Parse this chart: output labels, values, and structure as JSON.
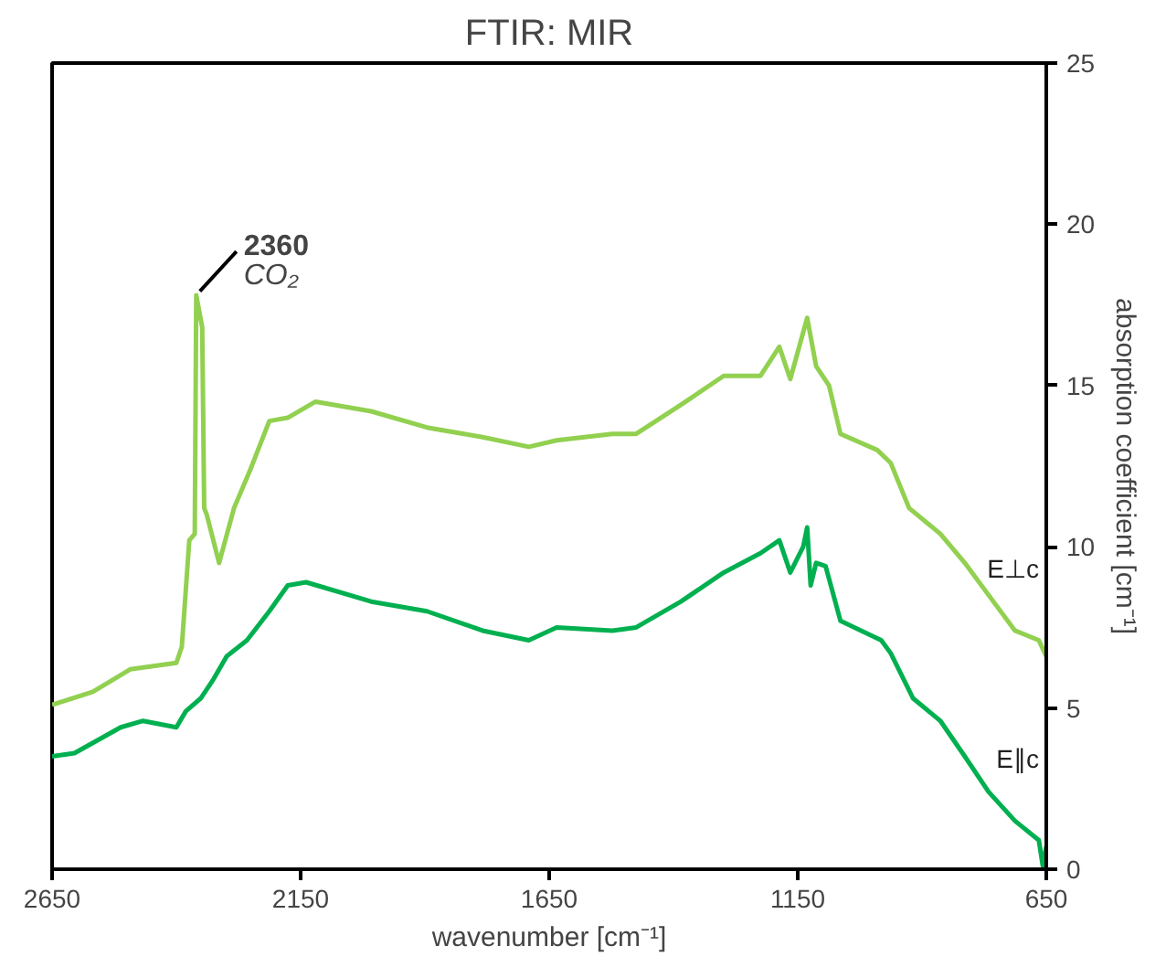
{
  "chart_data": {
    "type": "line",
    "title": "FTIR: MIR",
    "xlabel": "wavenumber [cm⁻¹]",
    "ylabel": "absorption coefficient [cm⁻¹]",
    "xlim": [
      2650,
      650
    ],
    "xticks": [
      2650,
      2150,
      1650,
      1150,
      650
    ],
    "ylim": [
      0,
      25
    ],
    "yticks": [
      0,
      5,
      10,
      15,
      20,
      25
    ],
    "grid": false,
    "annotations": [
      {
        "text": "2360",
        "x": 2360,
        "y": 17.8
      },
      {
        "text": "CO₂",
        "x": 2360,
        "y": 17.8
      }
    ],
    "series": [
      {
        "name": "E⊥c",
        "color": "#92d050",
        "x": [
          2650,
          2568,
          2493,
          2400,
          2389,
          2374,
          2363,
          2360,
          2348,
          2344,
          2339,
          2314,
          2284,
          2251,
          2213,
          2176,
          2120,
          2008,
          1896,
          1784,
          1691,
          1635,
          1523,
          1475,
          1385,
          1299,
          1225,
          1187,
          1165,
          1131,
          1113,
          1087,
          1064,
          990,
          963,
          926,
          863,
          814,
          766,
          713,
          665,
          650
        ],
        "values": [
          5.1,
          5.5,
          6.2,
          6.4,
          6.9,
          10.2,
          10.4,
          17.8,
          16.8,
          11.2,
          11.0,
          9.5,
          11.2,
          12.4,
          13.9,
          14.0,
          14.5,
          14.2,
          13.7,
          13.4,
          13.1,
          13.3,
          13.5,
          13.5,
          14.4,
          15.3,
          15.3,
          16.2,
          15.2,
          17.1,
          15.6,
          15.0,
          13.5,
          13.0,
          12.6,
          11.2,
          10.4,
          9.5,
          8.5,
          7.4,
          7.1,
          6.6
        ]
      },
      {
        "name": "E∥c",
        "color": "#00b050",
        "x": [
          2650,
          2605,
          2512,
          2467,
          2400,
          2381,
          2351,
          2325,
          2299,
          2258,
          2213,
          2176,
          2139,
          2008,
          1896,
          1784,
          1691,
          1635,
          1523,
          1475,
          1385,
          1299,
          1225,
          1187,
          1165,
          1139,
          1131,
          1124,
          1113,
          1094,
          1064,
          982,
          963,
          918,
          863,
          814,
          766,
          713,
          665,
          657,
          650
        ],
        "values": [
          3.5,
          3.6,
          4.4,
          4.6,
          4.4,
          4.9,
          5.3,
          5.9,
          6.6,
          7.1,
          8.0,
          8.8,
          8.9,
          8.3,
          8.0,
          7.4,
          7.1,
          7.5,
          7.4,
          7.5,
          8.3,
          9.2,
          9.8,
          10.2,
          9.2,
          10.0,
          10.6,
          8.8,
          9.5,
          9.4,
          7.7,
          7.1,
          6.7,
          5.3,
          4.6,
          3.5,
          2.4,
          1.5,
          0.9,
          0.1,
          0.7
        ]
      }
    ]
  }
}
